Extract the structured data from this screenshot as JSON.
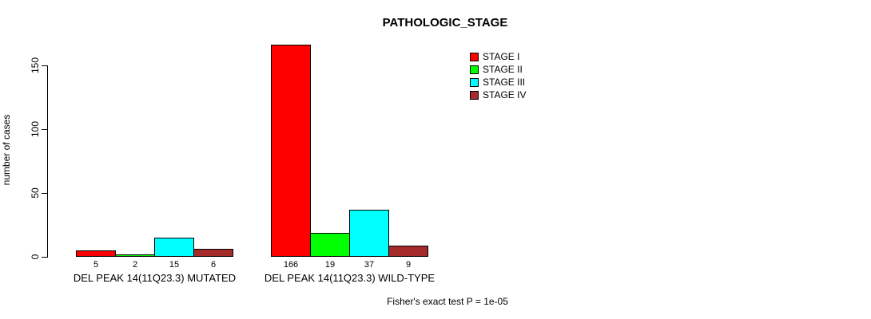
{
  "chart_data": {
    "type": "bar",
    "title": "PATHOLOGIC_STAGE",
    "xlabel": "",
    "ylabel": "number of cases",
    "ylim": [
      0,
      170
    ],
    "yticks": [
      0,
      50,
      100,
      150
    ],
    "grid": false,
    "legend_position": "top-right",
    "bar_border_color": "#000000",
    "background_color": "#ffffff",
    "categories": [
      "DEL PEAK 14(11Q23.3) MUTATED",
      "DEL PEAK 14(11Q23.3) WILD-TYPE"
    ],
    "series": [
      {
        "name": "STAGE I",
        "color": "#FF0000",
        "values": [
          5,
          166
        ]
      },
      {
        "name": "STAGE II",
        "color": "#00FF00",
        "values": [
          2,
          19
        ]
      },
      {
        "name": "STAGE III",
        "color": "#00FFFF",
        "values": [
          15,
          37
        ]
      },
      {
        "name": "STAGE IV",
        "color": "#A52A2A",
        "values": [
          6,
          9
        ]
      }
    ],
    "annotation": "Fisher's exact test P = 1e-05"
  }
}
